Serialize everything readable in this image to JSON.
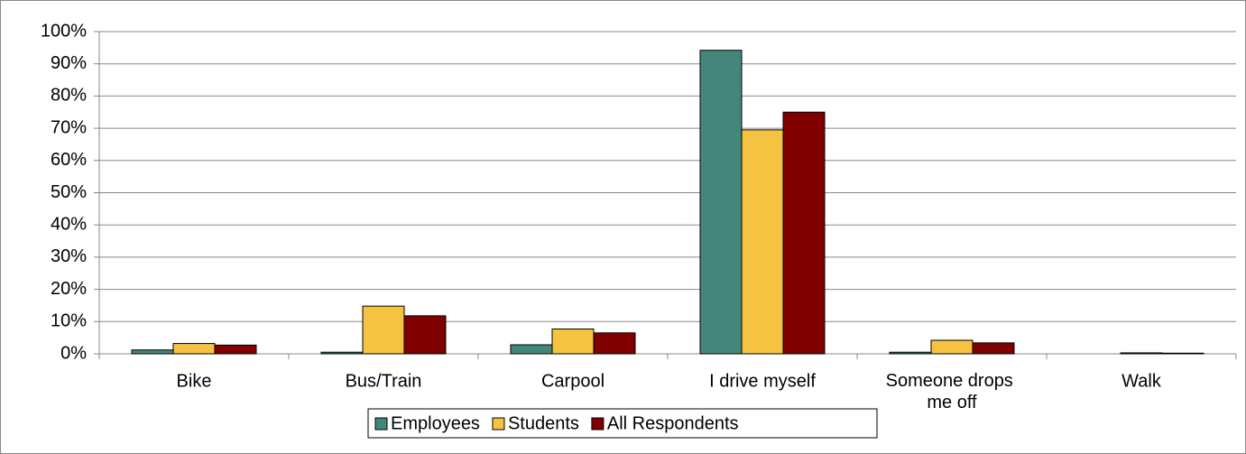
{
  "chart_data": {
    "type": "bar",
    "categories": [
      "Bike",
      "Bus/Train",
      "Carpool",
      "I drive myself",
      "Someone drops me off",
      "Walk"
    ],
    "series": [
      {
        "name": "Employees",
        "color": "#44877a",
        "values": [
          1.2,
          0.5,
          2.8,
          94.2,
          0.5,
          0
        ]
      },
      {
        "name": "Students",
        "color": "#f5c242",
        "values": [
          3.2,
          14.8,
          7.7,
          69.5,
          4.2,
          0.3
        ]
      },
      {
        "name": "All Respondents",
        "color": "#800000",
        "values": [
          2.7,
          11.8,
          6.5,
          75,
          3.4,
          0.2
        ]
      }
    ],
    "ylim": [
      0,
      100
    ],
    "yticks": [
      {
        "value": 0,
        "label": "0%"
      },
      {
        "value": 10,
        "label": "10%"
      },
      {
        "value": 20,
        "label": "20%"
      },
      {
        "value": 30,
        "label": "30%"
      },
      {
        "value": 40,
        "label": "40%"
      },
      {
        "value": 50,
        "label": "50%"
      },
      {
        "value": 60,
        "label": "60%"
      },
      {
        "value": 70,
        "label": "70%"
      },
      {
        "value": 80,
        "label": "80%"
      },
      {
        "value": 90,
        "label": "90%"
      },
      {
        "value": 100,
        "label": "100%"
      }
    ],
    "grid": true,
    "legend": "bottom"
  }
}
